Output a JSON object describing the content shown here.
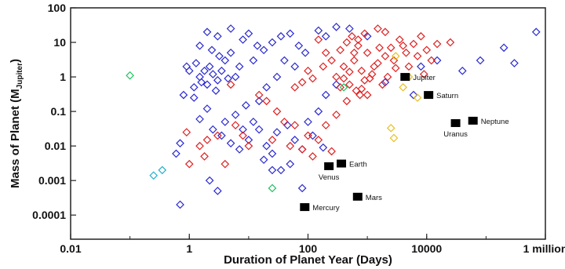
{
  "chart_data": {
    "type": "scatter",
    "xlabel": "Duration of Planet Year (Days)",
    "ylabel": "Mass of Planet (M",
    "ylabel_sub": "Jupiter",
    "ylabel_end": ")",
    "x_scale": "log",
    "y_scale": "log",
    "xlim": [
      0.01,
      1000000
    ],
    "ylim": [
      2e-05,
      100
    ],
    "x_ticks": [
      {
        "value": 0.01,
        "label": "0.01"
      },
      {
        "value": 1,
        "label": "1"
      },
      {
        "value": 100,
        "label": "100"
      },
      {
        "value": 10000,
        "label": "10000"
      },
      {
        "value": 1000000,
        "label": "1 million"
      }
    ],
    "y_ticks": [
      {
        "value": 100,
        "label": "100"
      },
      {
        "value": 10,
        "label": "10"
      },
      {
        "value": 1,
        "label": "1"
      },
      {
        "value": 0.1,
        "label": "0.1"
      },
      {
        "value": 0.01,
        "label": "0.01"
      },
      {
        "value": 0.001,
        "label": "0.001"
      },
      {
        "value": 0.0001,
        "label": "0.0001"
      }
    ],
    "grid": false,
    "series": [
      {
        "color": "#2a2ad0",
        "marker": "diamond",
        "points": [
          [
            2.5,
            1.2
          ],
          [
            1.8,
            1.5
          ],
          [
            3,
            0.8
          ],
          [
            2.2,
            2
          ],
          [
            1.5,
            1
          ],
          [
            4,
            3
          ],
          [
            3.5,
            1.5
          ],
          [
            2,
            0.6
          ],
          [
            1.3,
            2.5
          ],
          [
            5,
            5
          ],
          [
            6,
            1
          ],
          [
            2.8,
            0.4
          ],
          [
            1.6,
            0.7
          ],
          [
            3.2,
            4
          ],
          [
            2.4,
            6
          ],
          [
            1,
            1.5
          ],
          [
            0.9,
            2
          ],
          [
            1.2,
            0.5
          ],
          [
            4.5,
            0.9
          ],
          [
            7,
            2
          ],
          [
            8,
            12
          ],
          [
            10,
            18
          ],
          [
            14,
            8
          ],
          [
            3,
            15
          ],
          [
            1.5,
            8
          ],
          [
            2,
            20
          ],
          [
            5,
            25
          ],
          [
            12,
            3
          ],
          [
            18,
            6
          ],
          [
            25,
            10
          ],
          [
            35,
            15
          ],
          [
            50,
            18
          ],
          [
            70,
            8
          ],
          [
            40,
            3
          ],
          [
            60,
            2
          ],
          [
            90,
            5
          ],
          [
            30,
            1
          ],
          [
            20,
            0.5
          ],
          [
            15,
            0.2
          ],
          [
            9,
            0.15
          ],
          [
            6,
            0.08
          ],
          [
            4,
            0.05
          ],
          [
            2.5,
            0.03
          ],
          [
            3.5,
            0.02
          ],
          [
            8,
            0.03
          ],
          [
            12,
            0.05
          ],
          [
            5,
            0.012
          ],
          [
            7,
            0.008
          ],
          [
            10,
            0.015
          ],
          [
            15,
            0.03
          ],
          [
            20,
            0.01
          ],
          [
            25,
            0.006
          ],
          [
            30,
            0.025
          ],
          [
            45,
            0.04
          ],
          [
            60,
            0.015
          ],
          [
            80,
            0.008
          ],
          [
            50,
            0.003
          ],
          [
            35,
            0.002
          ],
          [
            18,
            0.004
          ],
          [
            1.5,
            0.06
          ],
          [
            2,
            0.12
          ],
          [
            1.2,
            0.25
          ],
          [
            0.8,
            0.3
          ],
          [
            0.7,
            0.012
          ],
          [
            0.6,
            0.006
          ],
          [
            0.7,
            0.0002
          ],
          [
            3,
            0.0005
          ],
          [
            2.2,
            0.001
          ],
          [
            25,
            0.002
          ],
          [
            80,
            0.0006
          ],
          [
            120,
            0.02
          ],
          [
            150,
            0.1
          ],
          [
            200,
            0.3
          ],
          [
            300,
            0.6
          ],
          [
            100,
            0.05
          ],
          [
            180,
            0.009
          ],
          [
            6000,
            0.3
          ],
          [
            8000,
            2
          ],
          [
            15000,
            3
          ],
          [
            40000,
            1.5
          ],
          [
            80000,
            3
          ],
          [
            200000,
            7
          ],
          [
            300000,
            2.5
          ],
          [
            700000,
            20
          ],
          [
            2000,
            0.7
          ],
          [
            1000,
            15
          ],
          [
            500,
            25
          ],
          [
            300,
            28
          ],
          [
            150,
            22
          ],
          [
            200,
            15
          ]
        ]
      },
      {
        "color": "#e02020",
        "marker": "diamond",
        "points": [
          [
            400,
            2
          ],
          [
            600,
            3
          ],
          [
            800,
            1.5
          ],
          [
            1000,
            5
          ],
          [
            1500,
            2.5
          ],
          [
            2000,
            4
          ],
          [
            3000,
            1.8
          ],
          [
            700,
            8
          ],
          [
            900,
            0.8
          ],
          [
            1200,
            1.2
          ],
          [
            500,
            0.6
          ],
          [
            300,
            1
          ],
          [
            250,
            3
          ],
          [
            350,
            6
          ],
          [
            450,
            10
          ],
          [
            550,
            15
          ],
          [
            650,
            0.4
          ],
          [
            750,
            0.3
          ],
          [
            1800,
            0.6
          ],
          [
            2500,
            7
          ],
          [
            3500,
            12
          ],
          [
            4500,
            5
          ],
          [
            5000,
            2
          ],
          [
            6000,
            9
          ],
          [
            8000,
            15
          ],
          [
            10000,
            6
          ],
          [
            12000,
            3
          ],
          [
            200,
            5
          ],
          [
            150,
            12
          ],
          [
            180,
            2
          ],
          [
            120,
            0.9
          ],
          [
            100,
            1.5
          ],
          [
            80,
            0.7
          ],
          [
            60,
            0.5
          ],
          [
            450,
            0.2
          ],
          [
            300,
            0.08
          ],
          [
            200,
            0.04
          ],
          [
            150,
            0.015
          ],
          [
            250,
            0.007
          ],
          [
            100,
            0.02
          ],
          [
            80,
            0.008
          ],
          [
            50,
            0.01
          ],
          [
            40,
            0.05
          ],
          [
            30,
            0.1
          ],
          [
            20,
            0.2
          ],
          [
            15,
            0.3
          ],
          [
            10,
            0.01
          ],
          [
            8,
            0.02
          ],
          [
            6,
            0.04
          ],
          [
            5,
            0.6
          ],
          [
            3,
            0.02
          ],
          [
            2,
            0.015
          ],
          [
            1.5,
            0.01
          ],
          [
            1,
            0.003
          ],
          [
            0.9,
            0.025
          ],
          [
            1.8,
            0.005
          ],
          [
            4,
            0.003
          ],
          [
            25,
            0.015
          ],
          [
            60,
            0.04
          ],
          [
            120,
            0.005
          ],
          [
            2000,
            20
          ],
          [
            1500,
            25
          ],
          [
            900,
            18
          ],
          [
            700,
            12
          ],
          [
            600,
            5
          ],
          [
            1100,
            0.9
          ],
          [
            1300,
            2
          ],
          [
            1600,
            7
          ],
          [
            2200,
            1
          ],
          [
            2800,
            3
          ],
          [
            4000,
            8
          ],
          [
            7000,
            4
          ],
          [
            9000,
            1.2
          ],
          [
            15000,
            9
          ],
          [
            25000,
            10
          ],
          [
            500,
            1.4
          ],
          [
            400,
            0.9
          ],
          [
            350,
            0.5
          ],
          [
            800,
            0.45
          ],
          [
            1000,
            0.3
          ]
        ]
      },
      {
        "color": "#e8c020",
        "marker": "diamond",
        "points": [
          [
            3000,
            4
          ],
          [
            5000,
            1
          ],
          [
            7000,
            0.25
          ],
          [
            2500,
            0.033
          ],
          [
            2800,
            0.017
          ],
          [
            4000,
            0.5
          ]
        ]
      },
      {
        "color": "#20c060",
        "marker": "diamond",
        "points": [
          [
            0.1,
            1.1
          ],
          [
            25,
            0.0006
          ],
          [
            400,
            0.5
          ]
        ]
      },
      {
        "color": "#20b0d0",
        "marker": "diamond",
        "points": [
          [
            0.25,
            0.0014
          ],
          [
            0.35,
            0.002
          ]
        ]
      }
    ],
    "planets": [
      {
        "name": "Mercury",
        "x": 88,
        "y": 0.00017,
        "label_pos": "right"
      },
      {
        "name": "Venus",
        "x": 225,
        "y": 0.0026,
        "label_pos": "below"
      },
      {
        "name": "Earth",
        "x": 365,
        "y": 0.0031,
        "label_pos": "right"
      },
      {
        "name": "Mars",
        "x": 687,
        "y": 0.00034,
        "label_pos": "right"
      },
      {
        "name": "Jupiter",
        "x": 4333,
        "y": 1,
        "label_pos": "right"
      },
      {
        "name": "Saturn",
        "x": 10759,
        "y": 0.3,
        "label_pos": "right"
      },
      {
        "name": "Uranus",
        "x": 30687,
        "y": 0.046,
        "label_pos": "below"
      },
      {
        "name": "Neptune",
        "x": 60190,
        "y": 0.054,
        "label_pos": "right"
      }
    ]
  }
}
